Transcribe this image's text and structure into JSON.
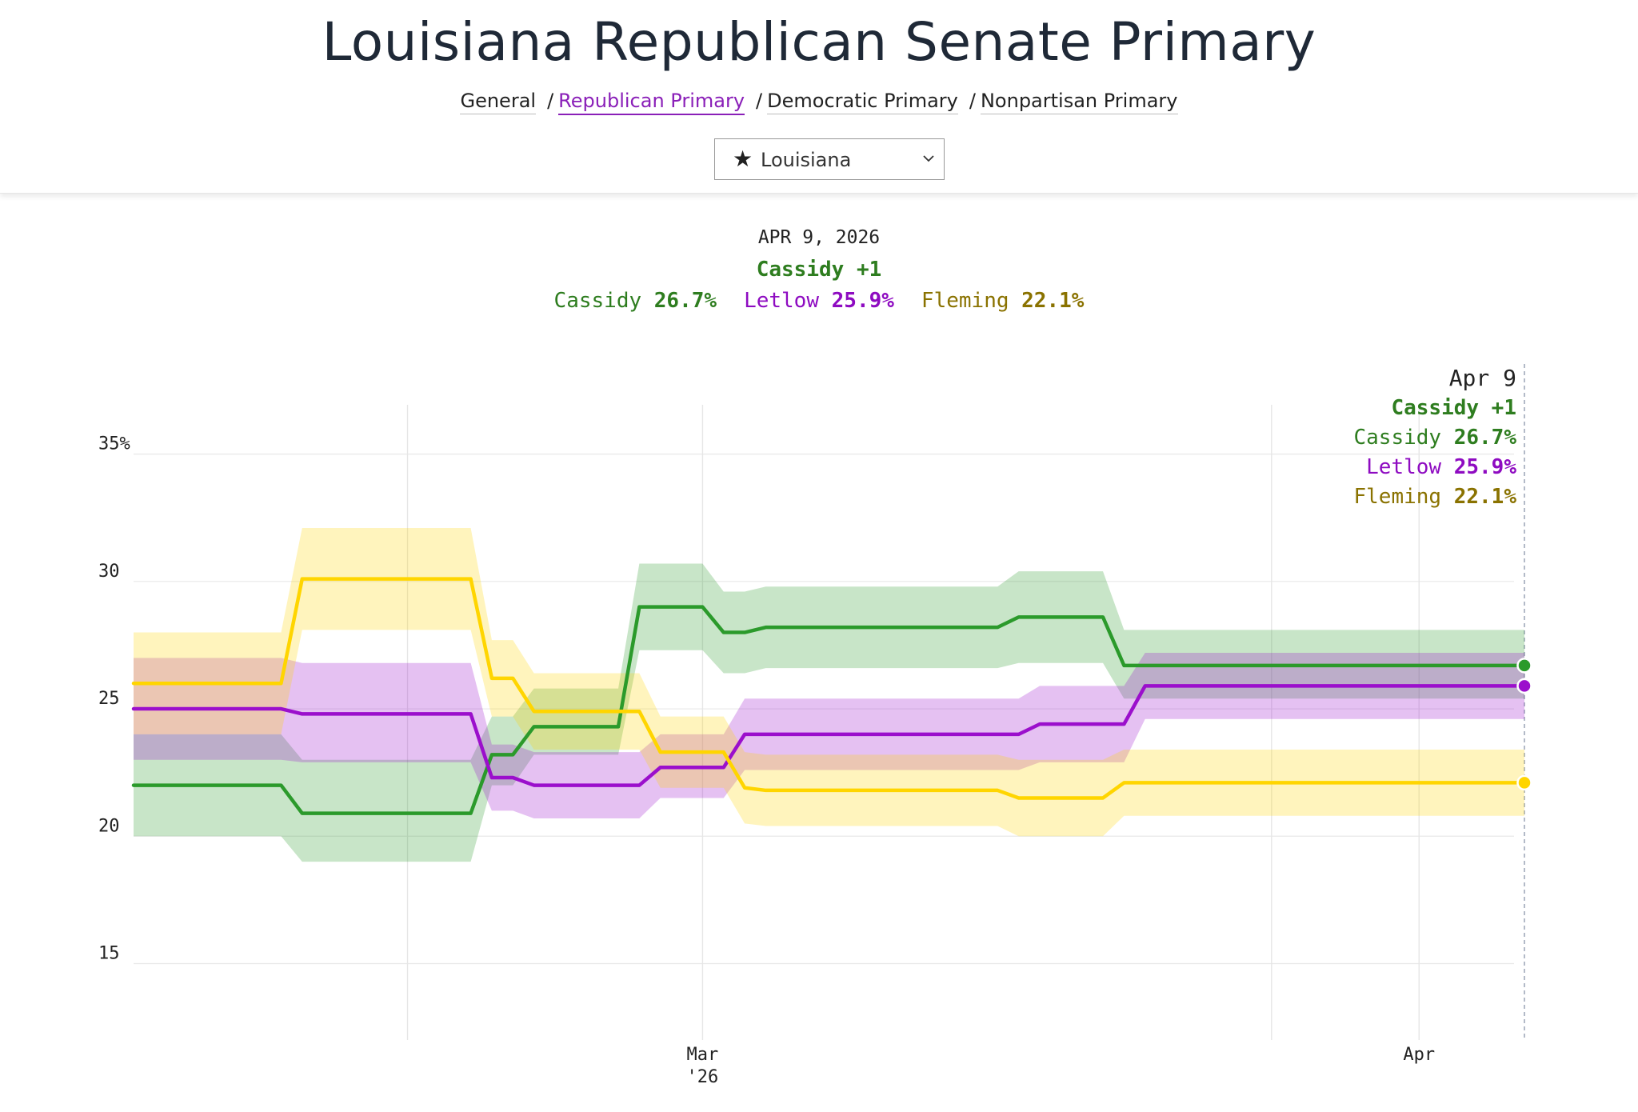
{
  "header": {
    "title": "Louisiana Republican Senate Primary",
    "nav": [
      {
        "label": "General",
        "active": false
      },
      {
        "label": "Republican Primary",
        "active": true
      },
      {
        "label": "Democratic Primary",
        "active": false
      },
      {
        "label": "Nonpartisan Primary",
        "active": false
      }
    ],
    "nav_separator": "/",
    "state_select": {
      "icon": "star-icon",
      "star_glyph": "★",
      "value": "Louisiana"
    }
  },
  "summary": {
    "date": "APR 9, 2026",
    "leader": "Cassidy +1",
    "entries": [
      {
        "name": "Cassidy",
        "value": "26.7%"
      },
      {
        "name": "Letlow",
        "value": "25.9%"
      },
      {
        "name": "Fleming",
        "value": "22.1%"
      }
    ]
  },
  "tooltip": {
    "date": "Apr 9",
    "leader": "Cassidy +1",
    "entries": [
      {
        "name": "Cassidy",
        "value": "26.7%"
      },
      {
        "name": "Letlow",
        "value": "25.9%"
      },
      {
        "name": "Fleming",
        "value": "22.1%"
      }
    ]
  },
  "colors": {
    "cassidy": "#2b9a2b",
    "letlow": "#9b0fcc",
    "fleming": "#ffd500",
    "cassidy_text": "#2e7d1f",
    "letlow_text": "#8e0bc1",
    "fleming_text": "#8a7200"
  },
  "chart_data": {
    "type": "line",
    "y_tick_labels": [
      "35%",
      "30",
      "25",
      "20",
      "15"
    ],
    "y_ticks": [
      35,
      30,
      25,
      20,
      15
    ],
    "ylim": [
      12,
      37.5
    ],
    "x_range": [
      "2026-02-02",
      "2026-04-09"
    ],
    "x_ticks": [
      {
        "date": "2026-02-15",
        "label": "",
        "sublabel": ""
      },
      {
        "date": "2026-03-01",
        "label": "Mar",
        "sublabel": "'26"
      },
      {
        "date": "2026-03-28",
        "label": "",
        "sublabel": ""
      },
      {
        "date": "2026-04-04",
        "label": "Apr",
        "sublabel": ""
      }
    ],
    "x": [
      "2026-02-02",
      "2026-02-09",
      "2026-02-10",
      "2026-02-18",
      "2026-02-19",
      "2026-02-20",
      "2026-02-21",
      "2026-02-22",
      "2026-02-25",
      "2026-02-26",
      "2026-02-27",
      "2026-03-01",
      "2026-03-02",
      "2026-03-03",
      "2026-03-04",
      "2026-03-06",
      "2026-03-14",
      "2026-03-15",
      "2026-03-16",
      "2026-03-17",
      "2026-03-20",
      "2026-03-21",
      "2026-03-22",
      "2026-04-01",
      "2026-04-09"
    ],
    "series": [
      {
        "name": "Cassidy",
        "values": [
          22.0,
          22.0,
          20.9,
          20.9,
          23.2,
          23.2,
          24.3,
          24.3,
          24.3,
          29.0,
          29.0,
          29.0,
          28.0,
          28.0,
          28.2,
          28.2,
          28.2,
          28.2,
          28.6,
          28.6,
          28.6,
          26.7,
          26.7,
          26.7,
          26.7
        ],
        "lower": [
          20.0,
          20.0,
          19.0,
          19.0,
          22.0,
          22.0,
          23.2,
          23.2,
          23.2,
          27.3,
          27.3,
          27.3,
          26.4,
          26.4,
          26.6,
          26.6,
          26.6,
          26.6,
          26.8,
          26.8,
          26.8,
          25.4,
          25.4,
          25.4,
          25.4
        ],
        "upper": [
          24.0,
          24.0,
          23.0,
          23.0,
          24.7,
          24.7,
          25.8,
          25.8,
          25.8,
          30.7,
          30.7,
          30.7,
          29.6,
          29.6,
          29.8,
          29.8,
          29.8,
          29.8,
          30.4,
          30.4,
          30.4,
          28.1,
          28.1,
          28.1,
          28.1
        ]
      },
      {
        "name": "Letlow",
        "values": [
          25.0,
          25.0,
          24.8,
          24.8,
          22.3,
          22.3,
          22.0,
          22.0,
          22.0,
          22.0,
          22.7,
          22.7,
          22.7,
          24.0,
          24.0,
          24.0,
          24.0,
          24.0,
          24.0,
          24.4,
          24.4,
          24.4,
          25.9,
          25.9,
          25.9
        ],
        "lower": [
          23.0,
          23.0,
          22.9,
          22.9,
          21.0,
          21.0,
          20.7,
          20.7,
          20.7,
          20.7,
          21.5,
          21.5,
          21.5,
          22.6,
          22.6,
          22.6,
          22.6,
          22.6,
          22.6,
          22.9,
          22.9,
          22.9,
          24.6,
          24.6,
          24.6
        ],
        "upper": [
          27.0,
          27.0,
          26.8,
          26.8,
          23.6,
          23.6,
          23.3,
          23.3,
          23.3,
          23.3,
          24.0,
          24.0,
          24.0,
          25.4,
          25.4,
          25.4,
          25.4,
          25.4,
          25.4,
          25.9,
          25.9,
          25.9,
          27.2,
          27.2,
          27.2
        ]
      },
      {
        "name": "Fleming",
        "values": [
          26.0,
          26.0,
          30.1,
          30.1,
          26.2,
          26.2,
          24.9,
          24.9,
          24.9,
          24.9,
          23.3,
          23.3,
          23.3,
          21.9,
          21.8,
          21.8,
          21.8,
          21.8,
          21.5,
          21.5,
          21.5,
          22.1,
          22.1,
          22.1,
          22.1
        ],
        "lower": [
          24.0,
          24.0,
          28.1,
          28.1,
          24.7,
          24.7,
          23.4,
          23.4,
          23.4,
          23.4,
          21.9,
          21.9,
          21.9,
          20.5,
          20.4,
          20.4,
          20.4,
          20.4,
          20.0,
          20.0,
          20.0,
          20.8,
          20.8,
          20.8,
          20.8
        ],
        "upper": [
          28.0,
          28.0,
          32.1,
          32.1,
          27.7,
          27.7,
          26.4,
          26.4,
          26.4,
          26.4,
          24.7,
          24.7,
          24.7,
          23.3,
          23.2,
          23.2,
          23.2,
          23.2,
          23.0,
          23.0,
          23.0,
          23.4,
          23.4,
          23.4,
          23.4
        ]
      }
    ],
    "grid": true,
    "legend": "none"
  }
}
